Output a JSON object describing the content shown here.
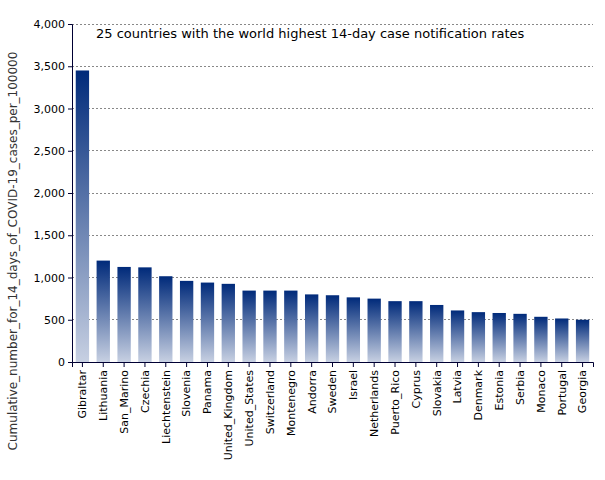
{
  "chart_data": {
    "type": "bar",
    "title": "25 countries with the world highest 14-day case notification rates",
    "y_label": "Cumulative_number_for_14_days_of_COVID-19_cases_per_100000",
    "categories": [
      "Gibraltar",
      "Lithuania",
      "San_Marino",
      "Czechia",
      "Liechtenstein",
      "Slovenia",
      "Panama",
      "United_Kingdom",
      "United_States",
      "Switzerland",
      "Montenegro",
      "Andorra",
      "Sweden",
      "Israel",
      "Netherlands",
      "Puerto_Rico",
      "Cyprus",
      "Slovakia",
      "Latvia",
      "Denmark",
      "Estonia",
      "Serbia",
      "Monaco",
      "Portugal",
      "Georgia"
    ],
    "values": [
      3450,
      1200,
      1125,
      1120,
      1015,
      960,
      940,
      925,
      845,
      845,
      845,
      800,
      790,
      765,
      750,
      720,
      720,
      675,
      610,
      590,
      580,
      570,
      535,
      515,
      500
    ],
    "color": "#002a7a",
    "ylim": [
      0,
      4000
    ],
    "yticks": [
      0,
      500,
      {
        "value": 1000,
        "label": "1,000"
      },
      {
        "value": 1500,
        "label": "1,500"
      },
      {
        "value": 2000,
        "label": "2,000"
      },
      {
        "value": 2500,
        "label": "2,500"
      },
      {
        "value": 3000,
        "label": "3,000"
      },
      {
        "value": 3500,
        "label": "3,500"
      },
      {
        "value": 4000,
        "label": "4,000"
      }
    ],
    "grid": true
  }
}
